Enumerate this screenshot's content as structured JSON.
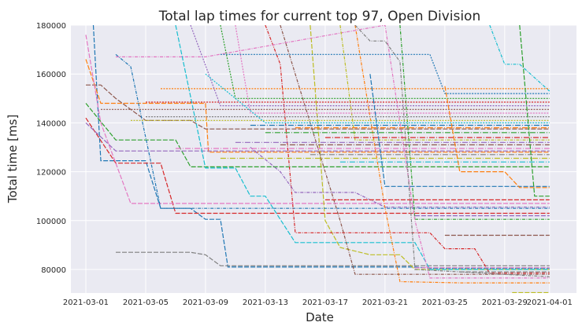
{
  "chart_data": {
    "type": "line",
    "title": "Total lap times for current top 97, Open Division",
    "xlabel": "Date",
    "ylabel": "Total time [ms]",
    "x_origin": "2021-03-01",
    "x_unit": "days since x_origin",
    "xlim": [
      -1,
      32.8
    ],
    "ylim": [
      70350,
      180000
    ],
    "xticks": [
      {
        "value": 0,
        "label": "2021-03-01"
      },
      {
        "value": 4,
        "label": "2021-03-05"
      },
      {
        "value": 8,
        "label": "2021-03-09"
      },
      {
        "value": 12,
        "label": "2021-03-13"
      },
      {
        "value": 16,
        "label": "2021-03-17"
      },
      {
        "value": 20,
        "label": "2021-03-21"
      },
      {
        "value": 24,
        "label": "2021-03-25"
      },
      {
        "value": 28,
        "label": "2021-03-29"
      },
      {
        "value": 31,
        "label": "2021-04-01"
      }
    ],
    "yticks": [
      {
        "value": 80000,
        "label": "80000"
      },
      {
        "value": 100000,
        "label": "100000"
      },
      {
        "value": 120000,
        "label": "120000"
      },
      {
        "value": 140000,
        "label": "140000"
      },
      {
        "value": 160000,
        "label": "160000"
      },
      {
        "value": 180000,
        "label": "180000"
      }
    ],
    "grid": true,
    "colors": [
      "#1f77b4",
      "#ff7f0e",
      "#2ca02c",
      "#d62728",
      "#9467bd",
      "#8c564b",
      "#e377c2",
      "#7f7f7f",
      "#bcbd22",
      "#17becf"
    ],
    "series": [
      {
        "points": [
          [
            0.5,
            180000
          ],
          [
            1,
            124500
          ],
          [
            4,
            124500
          ],
          [
            5,
            105000
          ],
          [
            7,
            105000
          ],
          [
            8,
            100500
          ],
          [
            9,
            100500
          ],
          [
            9.5,
            81000
          ],
          [
            22,
            81000
          ],
          [
            23,
            80500
          ],
          [
            31,
            80500
          ]
        ]
      },
      {
        "points": [
          [
            0,
            166000
          ],
          [
            1,
            148000
          ],
          [
            8,
            148000
          ],
          [
            8.2,
            128000
          ],
          [
            31,
            128000
          ]
        ]
      },
      {
        "points": [
          [
            0,
            148000
          ],
          [
            2,
            133000
          ],
          [
            6,
            133000
          ],
          [
            7,
            122000
          ],
          [
            31,
            122000
          ]
        ]
      },
      {
        "points": [
          [
            0,
            142000
          ],
          [
            2,
            123500
          ],
          [
            5,
            123500
          ],
          [
            6,
            103000
          ],
          [
            31,
            103000
          ]
        ]
      },
      {
        "points": [
          [
            0,
            140000
          ],
          [
            2,
            128500
          ],
          [
            31,
            128500
          ]
        ]
      },
      {
        "points": [
          [
            0,
            155500
          ],
          [
            1,
            155500
          ],
          [
            2,
            150000
          ],
          [
            4,
            141000
          ],
          [
            7,
            141000
          ],
          [
            8,
            137500
          ],
          [
            31,
            137500
          ]
        ]
      },
      {
        "points": [
          [
            0,
            176000
          ],
          [
            1,
            140000
          ],
          [
            3,
            107000
          ],
          [
            31,
            107000
          ]
        ]
      },
      {
        "points": [
          [
            2,
            87000
          ],
          [
            7,
            87000
          ],
          [
            8,
            86000
          ],
          [
            9,
            81500
          ],
          [
            31,
            81500
          ]
        ]
      },
      {
        "points": [
          [
            15,
            180000
          ],
          [
            16,
            100000
          ],
          [
            17,
            89000
          ],
          [
            19,
            86000
          ],
          [
            21,
            86000
          ],
          [
            22,
            80000
          ],
          [
            31,
            80000
          ]
        ]
      },
      {
        "points": [
          [
            6,
            180000
          ],
          [
            8,
            121500
          ],
          [
            10,
            121500
          ],
          [
            11,
            110000
          ],
          [
            12,
            110000
          ],
          [
            14,
            91000
          ],
          [
            22,
            91000
          ],
          [
            23,
            80000
          ],
          [
            31,
            80000
          ]
        ]
      },
      {
        "points": [
          [
            2,
            168000
          ],
          [
            3,
            163000
          ],
          [
            5,
            105000
          ],
          [
            31,
            105000
          ]
        ]
      },
      {
        "points": [
          [
            18,
            180000
          ],
          [
            20,
            105000
          ],
          [
            21,
            75000
          ],
          [
            25,
            74500
          ],
          [
            31,
            74500
          ]
        ]
      },
      {
        "points": [
          [
            21,
            180000
          ],
          [
            22,
            100500
          ],
          [
            31,
            100500
          ]
        ]
      },
      {
        "points": [
          [
            12,
            180000
          ],
          [
            13,
            164000
          ],
          [
            14,
            95000
          ],
          [
            23,
            95000
          ],
          [
            24,
            88500
          ],
          [
            26,
            88500
          ],
          [
            27,
            78500
          ],
          [
            31,
            78500
          ]
        ]
      },
      {
        "points": [
          [
            11,
            130000
          ],
          [
            13,
            120000
          ],
          [
            14,
            111500
          ],
          [
            18,
            111500
          ],
          [
            20,
            105500
          ],
          [
            31,
            105500
          ]
        ]
      },
      {
        "points": [
          [
            13,
            180000
          ],
          [
            17,
            100000
          ],
          [
            18,
            78000
          ],
          [
            31,
            78000
          ]
        ]
      },
      {
        "points": [
          [
            2,
            167000
          ],
          [
            8,
            167000
          ],
          [
            20,
            180000
          ],
          [
            22,
            100000
          ],
          [
            23,
            76500
          ],
          [
            31,
            76500
          ]
        ]
      },
      {
        "points": [
          [
            18,
            180000
          ],
          [
            19,
            173500
          ],
          [
            20,
            173500
          ],
          [
            21,
            165000
          ],
          [
            22,
            80000
          ],
          [
            31,
            77000
          ]
        ]
      },
      {
        "points": [
          [
            17,
            180000
          ],
          [
            18,
            133000
          ],
          [
            31,
            133000
          ]
        ]
      },
      {
        "points": [
          [
            27,
            180000
          ],
          [
            28,
            164000
          ],
          [
            29,
            164000
          ],
          [
            31,
            153000
          ]
        ]
      },
      {
        "points": [
          [
            9,
            168000
          ],
          [
            23,
            168000
          ],
          [
            24,
            152000
          ],
          [
            31,
            152000
          ]
        ]
      },
      {
        "points": [
          [
            5,
            154000
          ],
          [
            31,
            154000
          ]
        ]
      },
      {
        "points": [
          [
            9,
            180000
          ],
          [
            10,
            150000
          ],
          [
            31,
            150000
          ]
        ]
      },
      {
        "points": [
          [
            4,
            148500
          ],
          [
            31,
            148500
          ]
        ]
      },
      {
        "points": [
          [
            7,
            180000
          ],
          [
            9,
            147000
          ],
          [
            31,
            147000
          ]
        ]
      },
      {
        "points": [
          [
            1,
            145500
          ],
          [
            31,
            145500
          ]
        ]
      },
      {
        "points": [
          [
            10,
            180000
          ],
          [
            11,
            144000
          ],
          [
            31,
            144000
          ]
        ]
      },
      {
        "points": [
          [
            4,
            142500
          ],
          [
            31,
            142500
          ]
        ]
      },
      {
        "points": [
          [
            3,
            141000
          ],
          [
            31,
            141000
          ]
        ]
      },
      {
        "points": [
          [
            8,
            160000
          ],
          [
            12,
            140000
          ],
          [
            31,
            140000
          ]
        ]
      },
      {
        "points": [
          [
            11,
            139000
          ],
          [
            31,
            139000
          ]
        ]
      },
      {
        "points": [
          [
            14,
            138000
          ],
          [
            31,
            138000
          ]
        ]
      },
      {
        "points": [
          [
            12,
            136000
          ],
          [
            31,
            136000
          ]
        ]
      },
      {
        "points": [
          [
            16,
            134000
          ],
          [
            31,
            134000
          ]
        ]
      },
      {
        "points": [
          [
            10,
            132000
          ],
          [
            31,
            132000
          ]
        ]
      },
      {
        "points": [
          [
            13,
            131000
          ],
          [
            31,
            131000
          ]
        ]
      },
      {
        "points": [
          [
            6,
            129500
          ],
          [
            31,
            129500
          ]
        ]
      },
      {
        "points": [
          [
            15,
            127000
          ],
          [
            31,
            127000
          ]
        ]
      },
      {
        "points": [
          [
            9,
            125500
          ],
          [
            31,
            125500
          ]
        ]
      },
      {
        "points": [
          [
            17,
            124000
          ],
          [
            31,
            124000
          ]
        ]
      },
      {
        "points": [
          [
            19,
            160000
          ],
          [
            20,
            114000
          ],
          [
            31,
            114000
          ]
        ]
      },
      {
        "points": [
          [
            24,
            155000
          ],
          [
            25,
            120000
          ],
          [
            28,
            120000
          ],
          [
            29,
            113500
          ],
          [
            31,
            113500
          ]
        ]
      },
      {
        "points": [
          [
            29,
            180000
          ],
          [
            30,
            110000
          ],
          [
            31,
            110000
          ]
        ]
      },
      {
        "points": [
          [
            16,
            108500
          ],
          [
            31,
            108500
          ]
        ]
      },
      {
        "points": [
          [
            22,
            102000
          ],
          [
            31,
            102000
          ]
        ]
      },
      {
        "points": [
          [
            24,
            94000
          ],
          [
            31,
            94000
          ]
        ]
      },
      {
        "points": [
          [
            22,
            80700
          ],
          [
            31,
            80700
          ]
        ]
      },
      {
        "points": [
          [
            25,
            79000
          ],
          [
            31,
            79000
          ]
        ]
      },
      {
        "points": [
          [
            28.5,
            70500
          ],
          [
            31,
            70500
          ]
        ]
      }
    ]
  }
}
